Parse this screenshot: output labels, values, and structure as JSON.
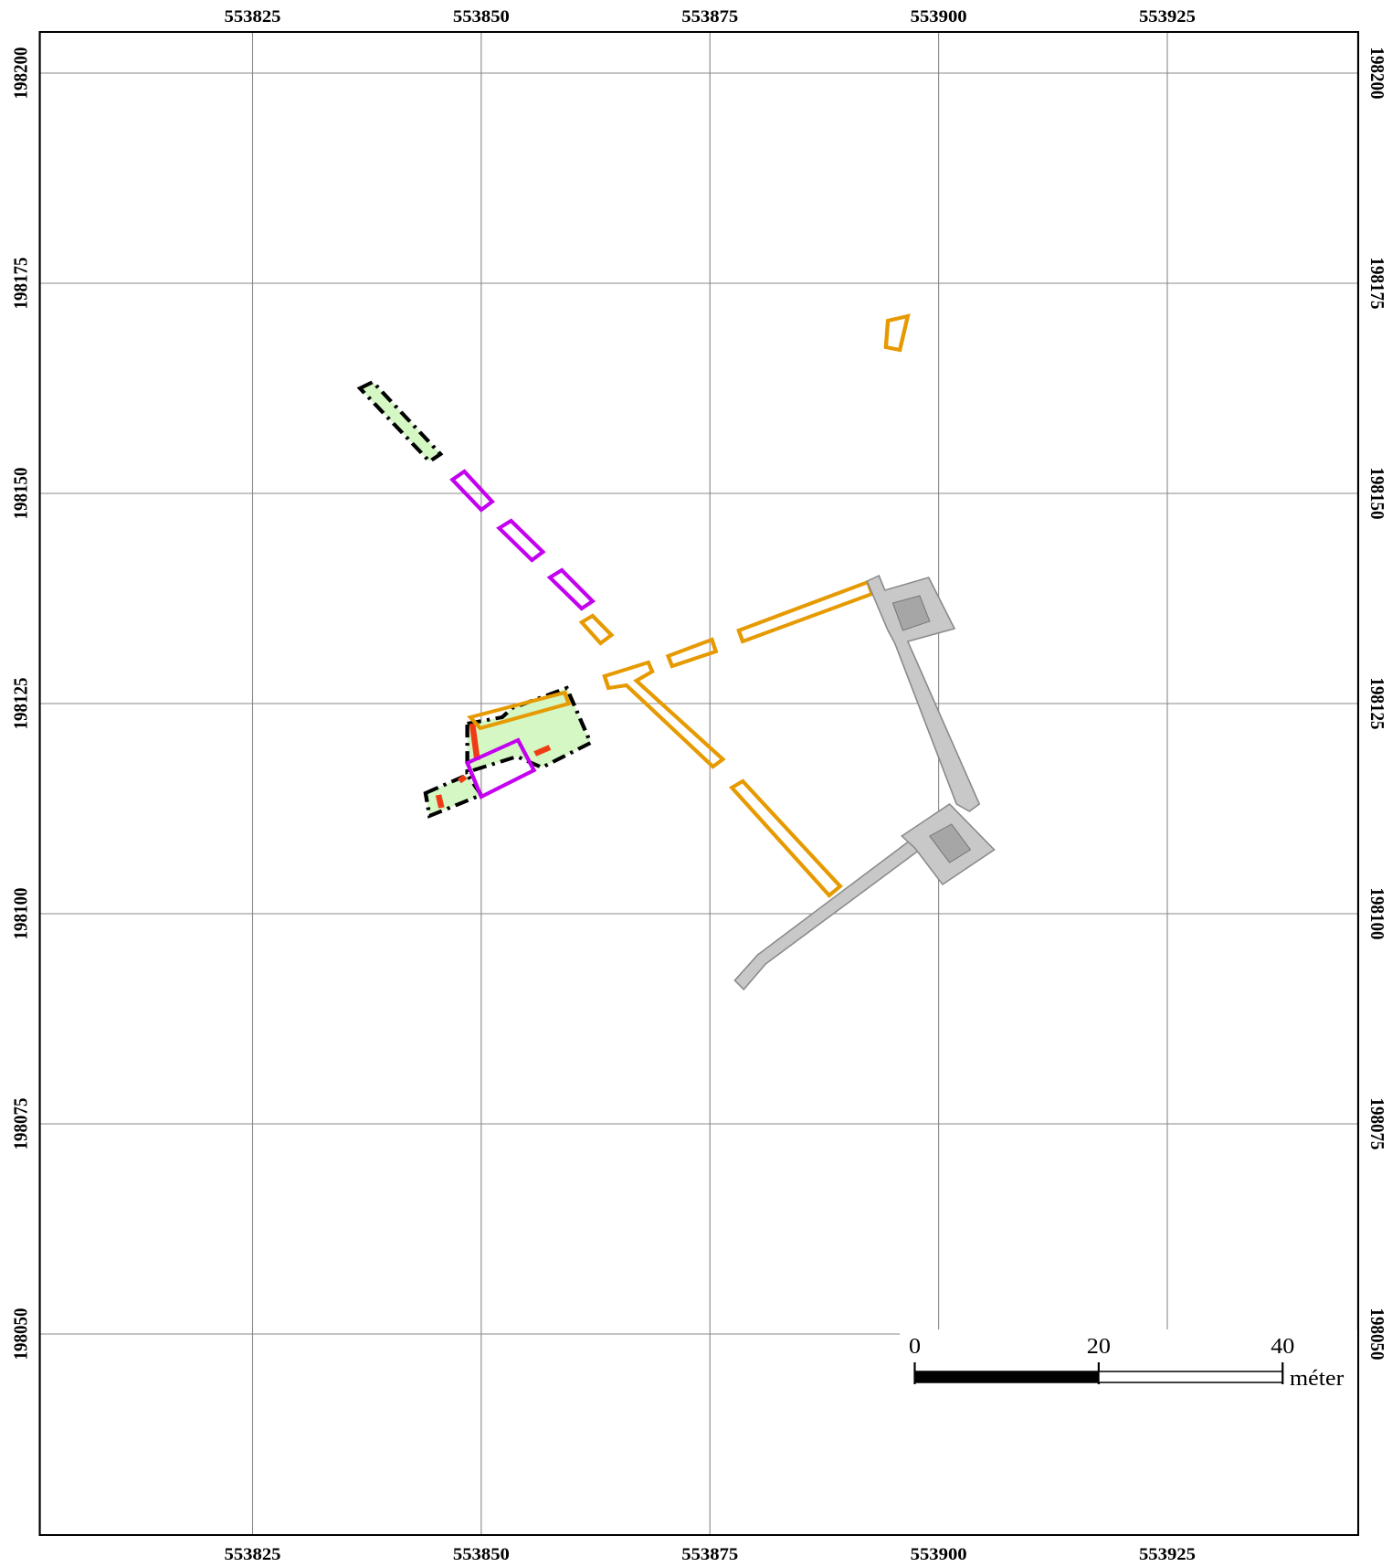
{
  "map": {
    "xticks": [
      553825,
      553850,
      553875,
      553900,
      553925
    ],
    "yticks": [
      198200,
      198175,
      198150,
      198125,
      198100,
      198075,
      198050
    ],
    "scale_bar": {
      "ticks": [
        0,
        20,
        40
      ],
      "unit": "méter"
    }
  }
}
